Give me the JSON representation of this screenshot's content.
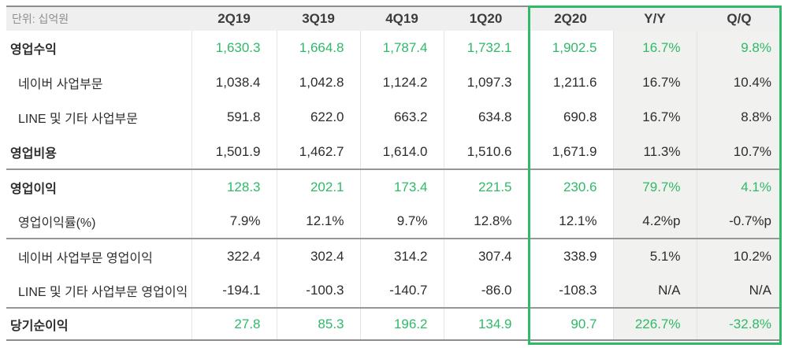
{
  "table": {
    "unit_label": "단위: 십억원",
    "columns": [
      "2Q19",
      "3Q19",
      "4Q19",
      "1Q20",
      "2Q20",
      "Y/Y",
      "Q/Q"
    ],
    "groups": [
      {
        "rows": [
          {
            "label": "영업수익",
            "style": "green-bold",
            "indent": false,
            "values": [
              "1,630.3",
              "1,664.8",
              "1,787.4",
              "1,732.1",
              "1,902.5",
              "16.7%",
              "9.8%"
            ]
          },
          {
            "label": "네이버 사업부문",
            "style": "normal",
            "indent": true,
            "values": [
              "1,038.4",
              "1,042.8",
              "1,124.2",
              "1,097.3",
              "1,211.6",
              "16.7%",
              "10.4%"
            ]
          },
          {
            "label": "LINE 및 기타 사업부문",
            "style": "normal",
            "indent": true,
            "values": [
              "591.8",
              "622.0",
              "663.2",
              "634.8",
              "690.8",
              "16.7%",
              "8.8%"
            ]
          },
          {
            "label": "영업비용",
            "style": "bold",
            "indent": false,
            "values": [
              "1,501.9",
              "1,462.7",
              "1,614.0",
              "1,510.6",
              "1,671.9",
              "11.3%",
              "10.7%"
            ]
          }
        ]
      },
      {
        "rows": [
          {
            "label": "영업이익",
            "style": "green-bold",
            "indent": false,
            "values": [
              "128.3",
              "202.1",
              "173.4",
              "221.5",
              "230.6",
              "79.7%",
              "4.1%"
            ]
          },
          {
            "label": "영업이익률(%)",
            "style": "normal",
            "indent": true,
            "values": [
              "7.9%",
              "12.1%",
              "9.7%",
              "12.8%",
              "12.1%",
              "4.2%p",
              "-0.7%p"
            ]
          }
        ]
      },
      {
        "rows": [
          {
            "label": "네이버 사업부문 영업이익",
            "style": "normal",
            "indent": true,
            "values": [
              "322.4",
              "302.4",
              "314.2",
              "307.4",
              "338.9",
              "5.1%",
              "10.2%"
            ]
          },
          {
            "label": "LINE 및 기타 사업부문 영업이익",
            "style": "normal",
            "indent": true,
            "values": [
              "-194.1",
              "-100.3",
              "-140.7",
              "-86.0",
              "-108.3",
              "N/A",
              "N/A"
            ]
          }
        ]
      },
      {
        "rows": [
          {
            "label": "당기순이익",
            "style": "green-bold",
            "indent": false,
            "values": [
              "27.8",
              "85.3",
              "196.2",
              "134.9",
              "90.7",
              "226.7%",
              "-32.8%"
            ]
          }
        ]
      }
    ],
    "highlight": {
      "columns": [
        "2Q20",
        "Y/Y",
        "Q/Q"
      ],
      "border_color": "#2fb968"
    }
  },
  "colors": {
    "accent_green": "#2fb968",
    "header_bg": "#efefef",
    "shaded_column_bg": "#f1f1ef",
    "group_divider": "#969696",
    "column_divider": "#e3e3e1",
    "value_text": "#2d2d2d",
    "muted_text": "#8e8e8e"
  }
}
